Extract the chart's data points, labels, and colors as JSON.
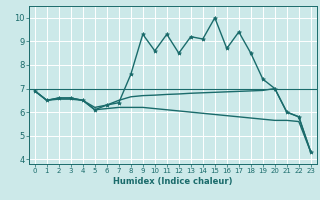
{
  "title": "",
  "xlabel": "Humidex (Indice chaleur)",
  "bg_color": "#cce9e9",
  "line_color": "#1a6b6b",
  "grid_color": "#ffffff",
  "xlim": [
    -0.5,
    23.5
  ],
  "ylim": [
    3.8,
    10.5
  ],
  "yticks": [
    4,
    5,
    6,
    7,
    8,
    9,
    10
  ],
  "xticks": [
    0,
    1,
    2,
    3,
    4,
    5,
    6,
    7,
    8,
    9,
    10,
    11,
    12,
    13,
    14,
    15,
    16,
    17,
    18,
    19,
    20,
    21,
    22,
    23
  ],
  "series1_x": [
    0,
    1,
    2,
    3,
    4,
    5,
    6,
    7,
    8,
    9,
    10,
    11,
    12,
    13,
    14,
    15,
    16,
    17,
    18,
    19,
    20,
    21,
    22,
    23
  ],
  "series1_y": [
    6.9,
    6.5,
    6.6,
    6.6,
    6.5,
    6.1,
    6.3,
    6.4,
    7.6,
    9.3,
    8.6,
    9.3,
    8.5,
    9.2,
    9.1,
    10.0,
    8.7,
    9.4,
    8.5,
    7.4,
    7.0,
    6.0,
    5.8,
    4.3
  ],
  "series2_x": [
    0,
    1,
    2,
    3,
    4,
    5,
    6,
    7,
    8,
    9,
    10,
    11,
    12,
    13,
    14,
    15,
    16,
    17,
    18,
    19,
    20,
    21,
    22,
    23
  ],
  "series2_y": [
    6.9,
    6.5,
    6.6,
    6.6,
    6.5,
    6.2,
    6.3,
    6.5,
    6.65,
    6.7,
    6.72,
    6.75,
    6.77,
    6.8,
    6.82,
    6.84,
    6.86,
    6.88,
    6.9,
    6.92,
    7.0,
    6.0,
    5.8,
    4.3
  ],
  "series3_x": [
    0,
    1,
    2,
    3,
    4,
    5,
    6,
    7,
    8,
    9,
    10,
    11,
    12,
    13,
    14,
    15,
    16,
    17,
    18,
    19,
    20,
    21,
    22,
    23
  ],
  "series3_y": [
    6.9,
    6.5,
    6.55,
    6.55,
    6.5,
    6.1,
    6.15,
    6.2,
    6.2,
    6.2,
    6.15,
    6.1,
    6.05,
    6.0,
    5.95,
    5.9,
    5.85,
    5.8,
    5.75,
    5.7,
    5.65,
    5.65,
    5.6,
    4.3
  ]
}
